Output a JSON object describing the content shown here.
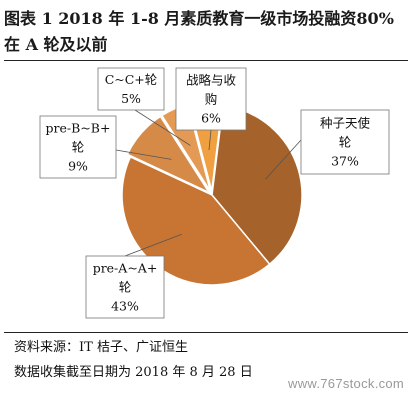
{
  "title": "图表 1 2018 年 1-8 月素质教育一级市场投融资80%在 A 轮及以前",
  "chart_data": {
    "type": "pie",
    "slices": [
      {
        "label": "种子天使轮",
        "value": 37,
        "display": "37%",
        "color": "#a5632b"
      },
      {
        "label": "pre-A~A+轮",
        "value": 43,
        "display": "43%",
        "color": "#c87533"
      },
      {
        "label": "pre-B~B+轮",
        "value": 9,
        "display": "9%",
        "color": "#d58a48"
      },
      {
        "label": "C~C+轮",
        "value": 5,
        "display": "5%",
        "color": "#e49a55"
      },
      {
        "label": "战略与收购",
        "value": 6,
        "display": "6%",
        "color": "#f0a040"
      }
    ],
    "label_lines": [
      [
        "种子天使",
        "轮",
        "37%"
      ],
      [
        "pre-A~A+",
        "轮",
        "43%"
      ],
      [
        "pre-B~B+",
        "轮",
        "9%"
      ],
      [
        "C~C+轮",
        "5%"
      ],
      [
        "战略与收",
        "购",
        "6%"
      ]
    ],
    "legend": "none"
  },
  "footer": {
    "source": "资料来源：IT 桔子、广证恒生",
    "note": "数据收集截至日期为 2018 年 8 月 28 日"
  },
  "watermark": "www.767stock.com"
}
